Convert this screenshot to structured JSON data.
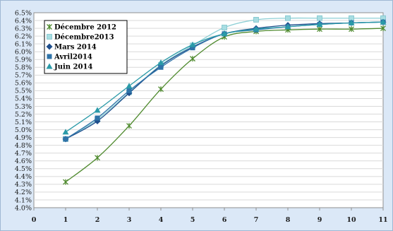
{
  "chart_data": {
    "type": "line",
    "title": "",
    "xlabel": "",
    "ylabel": "",
    "x": [
      1,
      2,
      3,
      4,
      5,
      6,
      7,
      8,
      9,
      10,
      11
    ],
    "xlim": [
      0,
      11
    ],
    "ylim": [
      4.0,
      6.5
    ],
    "y_ticks": [
      "4.0%",
      "4.1%",
      "4.2%",
      "4.3%",
      "4.4%",
      "4.5%",
      "4.6%",
      "4.7%",
      "4.8%",
      "4.9%",
      "5.0%",
      "5.1%",
      "5.2%",
      "5.3%",
      "5.4%",
      "5.5%",
      "5.6%",
      "5.7%",
      "5.8%",
      "5.9%",
      "6.0%",
      "6.1%",
      "6.2%",
      "6.3%",
      "6.4%",
      "6.5%"
    ],
    "x_ticks": [
      "0",
      "1",
      "2",
      "3",
      "4",
      "5",
      "6",
      "7",
      "8",
      "9",
      "10",
      "11"
    ],
    "grid": "horizontal",
    "legend_position": "top-left",
    "series": [
      {
        "name": "Décembre 2012",
        "color": "#4f8a2e",
        "marker": "star",
        "values": [
          4.33,
          4.64,
          5.05,
          5.52,
          5.91,
          6.19,
          6.26,
          6.28,
          6.29,
          6.29,
          6.3
        ]
      },
      {
        "name": "Décembre2013",
        "color": "#8fd0d6",
        "marker": "square-light",
        "values": [
          4.88,
          5.13,
          5.48,
          5.83,
          6.08,
          6.31,
          6.41,
          6.43,
          6.43,
          6.43,
          6.43
        ]
      },
      {
        "name": "Mars 2014",
        "color": "#1f4e8c",
        "marker": "diamond",
        "values": [
          4.88,
          5.11,
          5.47,
          5.82,
          6.06,
          6.23,
          6.3,
          6.34,
          6.36,
          6.37,
          6.38
        ]
      },
      {
        "name": "Avril2014",
        "color": "#2f73a8",
        "marker": "square",
        "values": [
          4.88,
          5.15,
          5.5,
          5.8,
          6.05,
          6.23,
          6.28,
          6.32,
          6.35,
          6.37,
          6.38
        ]
      },
      {
        "name": "Juin 2014",
        "color": "#2a9aa8",
        "marker": "triangle",
        "values": [
          4.97,
          5.25,
          5.56,
          5.86,
          6.09,
          6.23,
          6.29,
          6.32,
          6.35,
          6.37,
          6.38
        ]
      }
    ]
  }
}
